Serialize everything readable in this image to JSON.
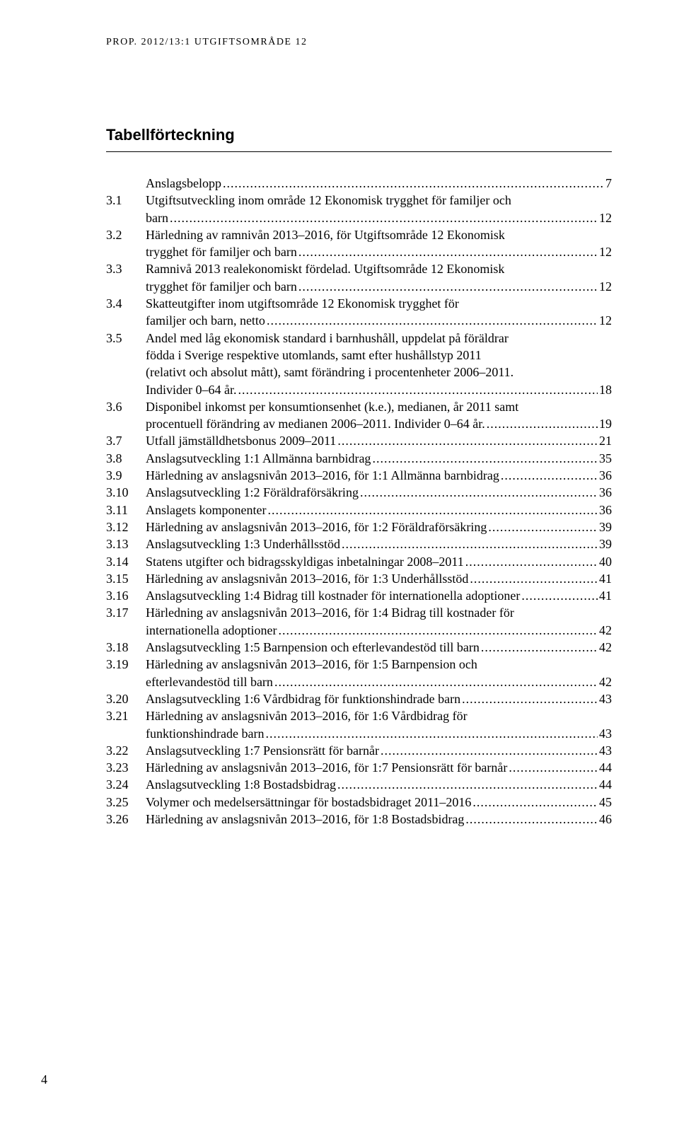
{
  "running_header": "PROP. 2012/13:1 UTGIFTSOMRÅDE 12",
  "section_title": "Tabellförteckning",
  "entries": [
    {
      "num": "",
      "lines": [
        "Anslagsbelopp"
      ],
      "page": "7"
    },
    {
      "num": "3.1",
      "lines": [
        "Utgiftsutveckling inom område 12 Ekonomisk trygghet för familjer och",
        "barn"
      ],
      "page": "12"
    },
    {
      "num": "3.2",
      "lines": [
        "Härledning av ramnivån 2013–2016, för Utgiftsområde 12 Ekonomisk",
        "trygghet för familjer och barn"
      ],
      "page": "12"
    },
    {
      "num": "3.3",
      "lines": [
        "Ramnivå 2013 realekonomiskt fördelad. Utgiftsområde 12 Ekonomisk",
        "trygghet för familjer och barn"
      ],
      "page": "12"
    },
    {
      "num": "3.4",
      "lines": [
        "Skatteutgifter inom utgiftsområde  12 Ekonomisk trygghet för",
        "familjer och barn, netto"
      ],
      "page": "12"
    },
    {
      "num": "3.5",
      "lines": [
        "Andel med låg ekonomisk standard i barnhushåll, uppdelat på föräldrar",
        "födda i Sverige respektive utomlands, samt efter hushållstyp 2011",
        "(relativt och absolut mått), samt förändring i procentenheter 2006–2011.",
        "Individer 0–64 år."
      ],
      "page": "18"
    },
    {
      "num": "3.6",
      "lines": [
        "Disponibel inkomst per konsumtionsenhet (k.e.), medianen, år 2011 samt",
        "procentuell förändring av medianen 2006–2011. Individer 0–64 år."
      ],
      "page": "19"
    },
    {
      "num": "3.7",
      "lines": [
        "Utfall jämställdhetsbonus 2009–2011"
      ],
      "page": "21"
    },
    {
      "num": "3.8",
      "lines": [
        "Anslagsutveckling 1:1 Allmänna barnbidrag"
      ],
      "page": "35"
    },
    {
      "num": "3.9",
      "lines": [
        "Härledning av anslagsnivån 2013–2016, för  1:1 Allmänna barnbidrag"
      ],
      "page": "36"
    },
    {
      "num": "3.10",
      "lines": [
        "Anslagsutveckling 1:2 Föräldraförsäkring"
      ],
      "page": "36"
    },
    {
      "num": "3.11",
      "lines": [
        "Anslagets komponenter"
      ],
      "page": "36"
    },
    {
      "num": "3.12",
      "lines": [
        "Härledning av anslagsnivån 2013–2016, för 1:2 Föräldraförsäkring"
      ],
      "page": "39"
    },
    {
      "num": "3.13",
      "lines": [
        "Anslagsutveckling 1:3 Underhållsstöd"
      ],
      "page": "39"
    },
    {
      "num": "3.14",
      "lines": [
        "Statens utgifter och bidragsskyldigas inbetalningar 2008–2011"
      ],
      "page": "40"
    },
    {
      "num": "3.15",
      "lines": [
        "Härledning av anslagsnivån 2013–2016, för 1:3 Underhållsstöd"
      ],
      "page": "41"
    },
    {
      "num": "3.16",
      "lines": [
        "Anslagsutveckling 1:4 Bidrag till kostnader för internationella adoptioner"
      ],
      "page": "41"
    },
    {
      "num": "3.17",
      "lines": [
        "Härledning av anslagsnivån 2013–2016, för 1:4 Bidrag till kostnader för",
        "internationella adoptioner"
      ],
      "page": "42"
    },
    {
      "num": "3.18",
      "lines": [
        "Anslagsutveckling 1:5 Barnpension och efterlevandestöd till barn"
      ],
      "page": "42"
    },
    {
      "num": "3.19",
      "lines": [
        "Härledning av anslagsnivån 2013–2016, för 1:5 Barnpension och",
        "efterlevandestöd till barn"
      ],
      "page": "42"
    },
    {
      "num": "3.20",
      "lines": [
        "Anslagsutveckling 1:6 Vårdbidrag för funktionshindrade barn"
      ],
      "page": "43"
    },
    {
      "num": "3.21",
      "lines": [
        "Härledning av anslagsnivån 2013–2016, för 1:6 Vårdbidrag för",
        "funktionshindrade barn"
      ],
      "page": "43"
    },
    {
      "num": "3.22",
      "lines": [
        "Anslagsutveckling 1:7 Pensionsrätt för barnår"
      ],
      "page": "43"
    },
    {
      "num": "3.23",
      "lines": [
        "Härledning av anslagsnivån 2013–2016, för 1:7 Pensionsrätt för barnår"
      ],
      "page": "44"
    },
    {
      "num": "3.24",
      "lines": [
        "Anslagsutveckling 1:8 Bostadsbidrag"
      ],
      "page": "44"
    },
    {
      "num": "3.25",
      "lines": [
        "Volymer och medelsersättningar för bostadsbidraget 2011–2016"
      ],
      "page": "45"
    },
    {
      "num": "3.26",
      "lines": [
        "Härledning av anslagsnivån 2013–2016, för 1:8 Bostadsbidrag"
      ],
      "page": "46"
    }
  ],
  "page_number": "4"
}
